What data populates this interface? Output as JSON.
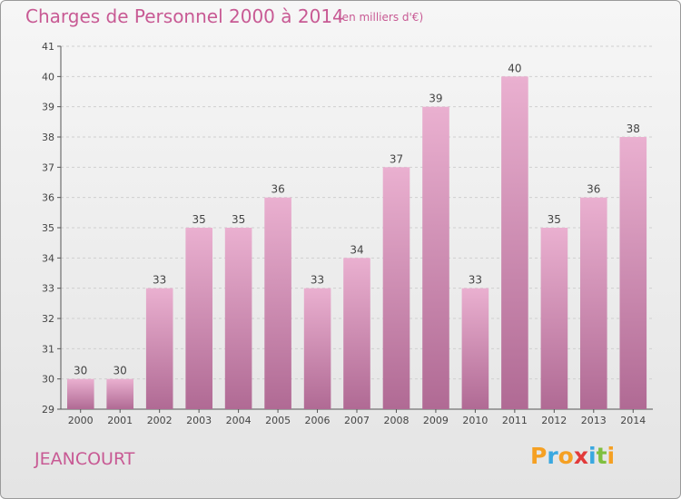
{
  "title": "Charges de Personnel 2000 à 2014",
  "subtitle": "(en milliers d'€)",
  "town": "JEANCOURT",
  "logo": {
    "text": "Proxiti",
    "letters": [
      "P",
      "r",
      "o",
      "x",
      "i",
      "t",
      "i"
    ],
    "colors": [
      "#f5a023",
      "#3aa8e0",
      "#f5a023",
      "#e23a3a",
      "#3aa8e0",
      "#7fbf3f",
      "#f5a023"
    ]
  },
  "colors": {
    "bar_light": "#eab0d0",
    "bar_dark": "#b06a94",
    "text_accent": "#c85a94"
  },
  "chart_data": {
    "type": "bar",
    "title": "Charges de Personnel 2000 à 2014",
    "subtitle": "(en milliers d'€)",
    "categories": [
      "2000",
      "2001",
      "2002",
      "2003",
      "2004",
      "2005",
      "2006",
      "2007",
      "2008",
      "2009",
      "2010",
      "2011",
      "2012",
      "2013",
      "2014"
    ],
    "values": [
      30,
      30,
      33,
      35,
      35,
      36,
      33,
      34,
      37,
      39,
      33,
      40,
      35,
      36,
      38
    ],
    "value_labels": [
      "30",
      "30",
      "33",
      "35",
      "35",
      "36",
      "33",
      "34",
      "37",
      "39",
      "33",
      "40",
      "35",
      "36",
      "38"
    ],
    "xlabel": "",
    "ylabel": "",
    "ylim": [
      29,
      41
    ],
    "yticks": [
      "29",
      "30",
      "31",
      "32",
      "33",
      "34",
      "35",
      "36",
      "37",
      "38",
      "39",
      "40",
      "41"
    ],
    "grid": true
  }
}
